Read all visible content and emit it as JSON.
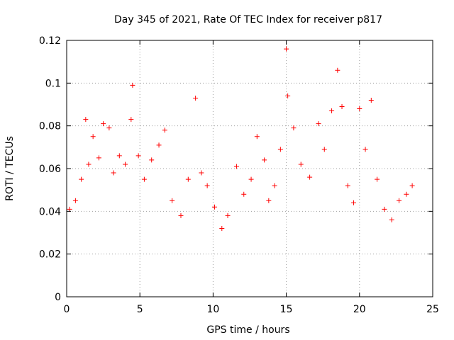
{
  "chart_data": {
    "type": "scatter",
    "title": "Day 345 of 2021, Rate Of TEC Index for receiver p817",
    "xlabel": "GPS time / hours",
    "ylabel": "ROTI / TECUs",
    "xlim": [
      0,
      25
    ],
    "ylim": [
      0,
      0.12
    ],
    "x_ticks": [
      0,
      5,
      10,
      15,
      20,
      25
    ],
    "y_ticks": [
      0,
      0.02,
      0.04,
      0.06,
      0.08,
      0.1,
      0.12
    ],
    "x_tick_labels": [
      "0",
      "5",
      "10",
      "15",
      "20",
      "25"
    ],
    "y_tick_labels": [
      "0",
      "0.02",
      "0.04",
      "0.06",
      "0.08",
      "0.1",
      "0.12"
    ],
    "grid": true,
    "marker": "+",
    "marker_color": "#ff0000",
    "series": [
      {
        "name": "ROTI",
        "x": [
          0.2,
          0.6,
          1.0,
          1.3,
          1.5,
          1.8,
          2.2,
          2.5,
          2.9,
          3.2,
          3.6,
          4.0,
          4.4,
          4.5,
          4.9,
          5.3,
          5.8,
          6.3,
          6.7,
          7.2,
          7.8,
          8.3,
          8.8,
          9.2,
          9.6,
          10.1,
          10.6,
          11.0,
          11.6,
          12.1,
          12.6,
          13.0,
          13.5,
          13.8,
          14.2,
          14.6,
          15.0,
          15.1,
          15.5,
          16.0,
          16.6,
          17.2,
          17.6,
          18.1,
          18.5,
          18.8,
          19.2,
          19.6,
          20.0,
          20.4,
          20.8,
          21.2,
          21.7,
          22.2,
          22.7,
          23.2,
          23.6
        ],
        "y": [
          0.041,
          0.045,
          0.055,
          0.083,
          0.062,
          0.075,
          0.065,
          0.081,
          0.079,
          0.058,
          0.066,
          0.062,
          0.083,
          0.099,
          0.066,
          0.055,
          0.064,
          0.071,
          0.078,
          0.045,
          0.038,
          0.055,
          0.093,
          0.058,
          0.052,
          0.042,
          0.032,
          0.038,
          0.061,
          0.048,
          0.055,
          0.075,
          0.064,
          0.045,
          0.052,
          0.069,
          0.116,
          0.094,
          0.079,
          0.062,
          0.056,
          0.081,
          0.069,
          0.087,
          0.106,
          0.089,
          0.052,
          0.044,
          0.088,
          0.069,
          0.092,
          0.055,
          0.041,
          0.036,
          0.045,
          0.048,
          0.052
        ]
      }
    ]
  }
}
